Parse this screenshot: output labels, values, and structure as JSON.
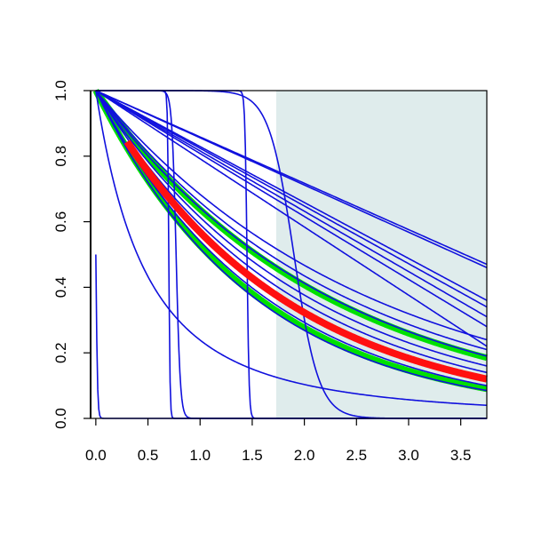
{
  "chart_data": {
    "type": "line",
    "title": "",
    "xlabel": "",
    "ylabel": "",
    "xlim": [
      -0.05,
      3.75
    ],
    "ylim": [
      0.0,
      1.0
    ],
    "x_ticks": [
      {
        "value": 0.0,
        "label": "0.0"
      },
      {
        "value": 0.5,
        "label": "0.5"
      },
      {
        "value": 1.0,
        "label": "1.0"
      },
      {
        "value": 1.5,
        "label": "1.5"
      },
      {
        "value": 2.0,
        "label": "2.0"
      },
      {
        "value": 2.5,
        "label": "2.5"
      },
      {
        "value": 3.0,
        "label": "3.0"
      },
      {
        "value": 3.5,
        "label": "3.5"
      }
    ],
    "y_ticks": [
      {
        "value": 0.0,
        "label": "0.0"
      },
      {
        "value": 0.2,
        "label": "0.2"
      },
      {
        "value": 0.4,
        "label": "0.4"
      },
      {
        "value": 0.6,
        "label": "0.6"
      },
      {
        "value": 0.8,
        "label": "0.8"
      },
      {
        "value": 1.0,
        "label": "1.0"
      }
    ],
    "shaded_region": {
      "x_from": 1.73,
      "x_to": 3.75,
      "color": "#dfecec"
    },
    "grid": false,
    "legend": "none",
    "colors": {
      "thin_curves": "#1010dd",
      "wide_band": "#00e000",
      "red_band": "#ff1010",
      "axes": "#000000"
    },
    "step_curves": [
      {
        "center": 0.0,
        "steepness": 0.008
      },
      {
        "center": 0.7,
        "steepness": 0.006
      },
      {
        "center": 0.77,
        "steepness": 0.02
      },
      {
        "center": 1.45,
        "steepness": 0.01
      },
      {
        "center": 1.9,
        "steepness": 0.12
      }
    ],
    "linear_curves": [
      {
        "y_at_xmax": 0.46
      },
      {
        "y_at_xmax": 0.47
      },
      {
        "y_at_xmax": 0.36
      },
      {
        "y_at_xmax": 0.34
      },
      {
        "y_at_xmax": 0.31
      },
      {
        "y_at_xmax": 0.28
      },
      {
        "y_at_xmax": 0.22
      }
    ],
    "decay_curves": [
      {
        "y_at_xmax": 0.24
      },
      {
        "y_at_xmax": 0.21
      },
      {
        "y_at_xmax": 0.19
      },
      {
        "y_at_xmax": 0.16
      },
      {
        "y_at_xmax": 0.14
      },
      {
        "y_at_xmax": 0.1
      },
      {
        "y_at_xmax": 0.085
      }
    ],
    "slow_decay_curve": {
      "y_at_xmax": 0.04
    },
    "green_band_curves": [
      {
        "y_at_xmax": 0.185
      },
      {
        "y_at_xmax": 0.09
      }
    ],
    "red_band": {
      "x_start": 0.3,
      "y_at_xmax": 0.12
    }
  }
}
